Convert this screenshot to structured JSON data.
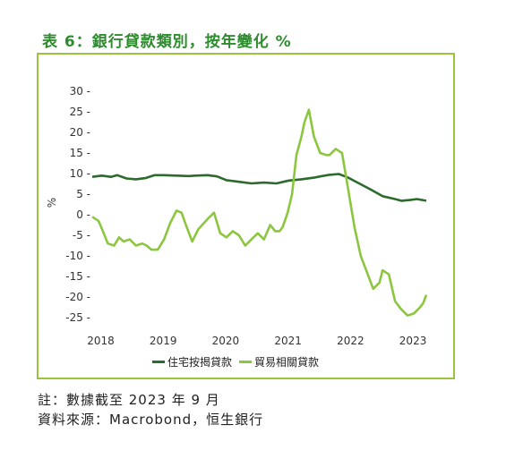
{
  "title": "表 6：銀行貸款類別，按年變化 %",
  "note": "註：數據截至 2023 年 9 月",
  "source": "資料來源：Macrobond，恒生銀行",
  "colors": {
    "accent": "#2e8b2e",
    "border": "#9ac43c"
  },
  "chart_data": {
    "type": "line",
    "ylabel": "%",
    "ylim": [
      -25,
      30
    ],
    "yticks": [
      "30 -",
      "25 -",
      "20 -",
      "15 -",
      "10 -",
      "5 -",
      "0 -",
      "-5 -",
      "-10 -",
      "-15 -",
      "-20 -",
      "-25 -"
    ],
    "ytick_values": [
      30,
      25,
      20,
      15,
      10,
      5,
      0,
      -5,
      -10,
      -15,
      -20,
      -25
    ],
    "xticks": [
      "2018",
      "2019",
      "2020",
      "2021",
      "2022",
      "2023"
    ],
    "xtick_values": [
      2018.0,
      2019.0,
      2020.0,
      2021.0,
      2022.0,
      2023.0
    ],
    "xlim": [
      2017.95,
      2023.3
    ],
    "grid": false,
    "legend": "bottom",
    "series": [
      {
        "name": "住宅按揭貸款",
        "color": "#2d6a2d",
        "x": [
          2017.95,
          2018.1,
          2018.25,
          2018.35,
          2018.5,
          2018.65,
          2018.8,
          2018.95,
          2019.1,
          2019.3,
          2019.5,
          2019.6,
          2019.8,
          2019.95,
          2020.1,
          2020.3,
          2020.5,
          2020.7,
          2020.9,
          2021.1,
          2021.3,
          2021.5,
          2021.6,
          2021.75,
          2021.9,
          2022.05,
          2022.2,
          2022.4,
          2022.6,
          2022.8,
          2022.9,
          2023.05,
          2023.15,
          2023.3
        ],
        "y": [
          9.2,
          9.5,
          9.2,
          9.6,
          8.8,
          8.6,
          8.9,
          9.6,
          9.6,
          9.5,
          9.4,
          9.5,
          9.6,
          9.3,
          8.4,
          8.0,
          7.6,
          7.8,
          7.6,
          8.3,
          8.6,
          9.0,
          9.3,
          9.7,
          9.9,
          9.0,
          7.8,
          6.2,
          4.5,
          3.8,
          3.4,
          3.6,
          3.8,
          3.4
        ]
      },
      {
        "name": "貿易相關貸款",
        "color": "#8cc63f",
        "x": [
          2017.95,
          2018.05,
          2018.12,
          2018.2,
          2018.3,
          2018.38,
          2018.45,
          2018.55,
          2018.65,
          2018.75,
          2018.82,
          2018.9,
          2019.0,
          2019.1,
          2019.2,
          2019.3,
          2019.38,
          2019.45,
          2019.55,
          2019.65,
          2019.8,
          2019.9,
          2020.0,
          2020.1,
          2020.2,
          2020.3,
          2020.4,
          2020.5,
          2020.6,
          2020.7,
          2020.8,
          2020.88,
          2020.95,
          2021.0,
          2021.08,
          2021.15,
          2021.22,
          2021.3,
          2021.35,
          2021.42,
          2021.5,
          2021.6,
          2021.7,
          2021.75,
          2021.85,
          2021.95,
          2022.05,
          2022.15,
          2022.25,
          2022.35,
          2022.45,
          2022.55,
          2022.6,
          2022.7,
          2022.8,
          2022.9,
          2023.0,
          2023.1,
          2023.2,
          2023.25,
          2023.3
        ],
        "y": [
          -0.5,
          -1.5,
          -4,
          -7,
          -7.5,
          -5.5,
          -6.5,
          -6,
          -7.5,
          -7,
          -7.5,
          -8.5,
          -8.5,
          -6,
          -2,
          1,
          0.5,
          -2.5,
          -6.5,
          -3.5,
          -1,
          0.5,
          -4.5,
          -5.5,
          -4,
          -5,
          -7.5,
          -6,
          -4.5,
          -6,
          -2.5,
          -4,
          -4,
          -3,
          0.5,
          5,
          14.5,
          19,
          22.5,
          25.5,
          19,
          15,
          14.5,
          14.5,
          16,
          15,
          6,
          -3,
          -10,
          -14,
          -18,
          -16.5,
          -13.5,
          -14.5,
          -21,
          -23,
          -24.5,
          -24,
          -22.5,
          -21.5,
          -19.5
        ]
      }
    ]
  }
}
